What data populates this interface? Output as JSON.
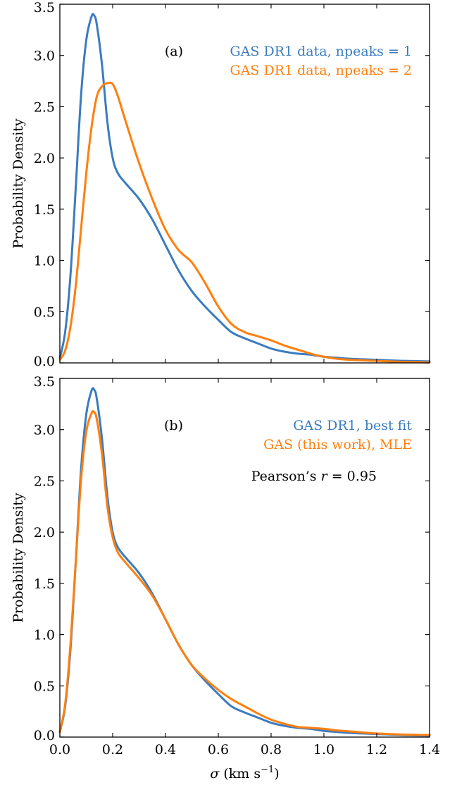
{
  "figure": {
    "colors": {
      "blue": "#3a7cbf",
      "orange": "#ff7f0e",
      "axis": "#000000"
    }
  },
  "chart_data": [
    {
      "type": "line",
      "panel_label": "(a)",
      "ylabel": "Probability Density",
      "xlabel": "",
      "xlim": [
        0.0,
        1.4
      ],
      "ylim": [
        0.0,
        3.5
      ],
      "x_ticks": [
        "0.0",
        "0.2",
        "0.4",
        "0.6",
        "0.8",
        "1.0",
        "1.2",
        "1.4"
      ],
      "x_tick_labels_shown": false,
      "y_ticks": [
        "0.0",
        "0.5",
        "1.0",
        "1.5",
        "2.0",
        "2.5",
        "3.0",
        "3.5"
      ],
      "grid": false,
      "legend_position": "top-right",
      "annotation": "",
      "series": [
        {
          "name": "GAS DR1 data, npeaks = 1",
          "color": "#3a7cbf",
          "x": [
            0.0,
            0.02,
            0.04,
            0.06,
            0.08,
            0.1,
            0.12,
            0.13,
            0.14,
            0.16,
            0.18,
            0.2,
            0.22,
            0.25,
            0.3,
            0.35,
            0.4,
            0.45,
            0.5,
            0.55,
            0.6,
            0.65,
            0.7,
            0.75,
            0.8,
            0.85,
            0.9,
            0.95,
            1.0,
            1.05,
            1.1,
            1.15,
            1.2,
            1.3,
            1.4
          ],
          "y": [
            0.05,
            0.3,
            0.85,
            1.7,
            2.6,
            3.15,
            3.38,
            3.39,
            3.3,
            2.9,
            2.35,
            2.0,
            1.85,
            1.75,
            1.6,
            1.4,
            1.15,
            0.9,
            0.7,
            0.55,
            0.42,
            0.3,
            0.24,
            0.19,
            0.14,
            0.11,
            0.09,
            0.08,
            0.06,
            0.05,
            0.04,
            0.035,
            0.03,
            0.02,
            0.015
          ]
        },
        {
          "name": "GAS DR1 data, npeaks = 2",
          "color": "#ff7f0e",
          "x": [
            0.0,
            0.02,
            0.04,
            0.06,
            0.08,
            0.1,
            0.12,
            0.14,
            0.16,
            0.18,
            0.2,
            0.22,
            0.25,
            0.3,
            0.35,
            0.4,
            0.45,
            0.5,
            0.55,
            0.6,
            0.65,
            0.7,
            0.75,
            0.8,
            0.85,
            0.9,
            0.95,
            1.0,
            1.05,
            1.1,
            1.15,
            1.2,
            1.3,
            1.4
          ],
          "y": [
            0.03,
            0.12,
            0.35,
            0.75,
            1.3,
            1.85,
            2.3,
            2.6,
            2.7,
            2.73,
            2.72,
            2.6,
            2.35,
            1.95,
            1.6,
            1.3,
            1.1,
            0.98,
            0.78,
            0.55,
            0.38,
            0.3,
            0.26,
            0.22,
            0.17,
            0.13,
            0.09,
            0.06,
            0.04,
            0.03,
            0.025,
            0.02,
            0.01,
            0.005
          ]
        }
      ]
    },
    {
      "type": "line",
      "panel_label": "(b)",
      "ylabel": "Probability Density",
      "xlabel": "σ (km s⁻¹)",
      "xlim": [
        0.0,
        1.4
      ],
      "ylim": [
        0.0,
        3.5
      ],
      "x_ticks": [
        "0.0",
        "0.2",
        "0.4",
        "0.6",
        "0.8",
        "1.0",
        "1.2",
        "1.4"
      ],
      "x_tick_labels_shown": true,
      "y_ticks": [
        "0.0",
        "0.5",
        "1.0",
        "1.5",
        "2.0",
        "2.5",
        "3.0",
        "3.5"
      ],
      "grid": false,
      "legend_position": "top-right",
      "annotation": "Pearson’s r = 0.95",
      "series": [
        {
          "name": "GAS DR1, best fit",
          "color": "#3a7cbf",
          "x": [
            0.0,
            0.02,
            0.04,
            0.06,
            0.08,
            0.1,
            0.12,
            0.13,
            0.14,
            0.16,
            0.18,
            0.2,
            0.22,
            0.25,
            0.3,
            0.35,
            0.4,
            0.45,
            0.5,
            0.55,
            0.6,
            0.65,
            0.7,
            0.75,
            0.8,
            0.85,
            0.9,
            0.95,
            1.0,
            1.05,
            1.1,
            1.15,
            1.2,
            1.3,
            1.4
          ],
          "y": [
            0.05,
            0.3,
            0.85,
            1.7,
            2.6,
            3.15,
            3.38,
            3.39,
            3.3,
            2.9,
            2.35,
            2.0,
            1.85,
            1.75,
            1.6,
            1.4,
            1.15,
            0.9,
            0.7,
            0.55,
            0.42,
            0.3,
            0.24,
            0.19,
            0.14,
            0.11,
            0.09,
            0.08,
            0.06,
            0.05,
            0.04,
            0.035,
            0.03,
            0.02,
            0.015
          ]
        },
        {
          "name": "GAS (this work), MLE",
          "color": "#ff7f0e",
          "x": [
            0.0,
            0.02,
            0.04,
            0.06,
            0.08,
            0.1,
            0.12,
            0.13,
            0.14,
            0.16,
            0.18,
            0.2,
            0.22,
            0.25,
            0.3,
            0.35,
            0.4,
            0.45,
            0.5,
            0.55,
            0.6,
            0.65,
            0.7,
            0.75,
            0.8,
            0.85,
            0.9,
            0.95,
            1.0,
            1.05,
            1.1,
            1.15,
            1.2,
            1.3,
            1.4
          ],
          "y": [
            0.05,
            0.32,
            0.9,
            1.7,
            2.5,
            2.98,
            3.16,
            3.17,
            3.1,
            2.75,
            2.25,
            1.95,
            1.8,
            1.7,
            1.55,
            1.38,
            1.15,
            0.9,
            0.7,
            0.57,
            0.46,
            0.37,
            0.3,
            0.23,
            0.17,
            0.13,
            0.1,
            0.09,
            0.08,
            0.065,
            0.055,
            0.045,
            0.035,
            0.025,
            0.02
          ]
        }
      ]
    }
  ]
}
